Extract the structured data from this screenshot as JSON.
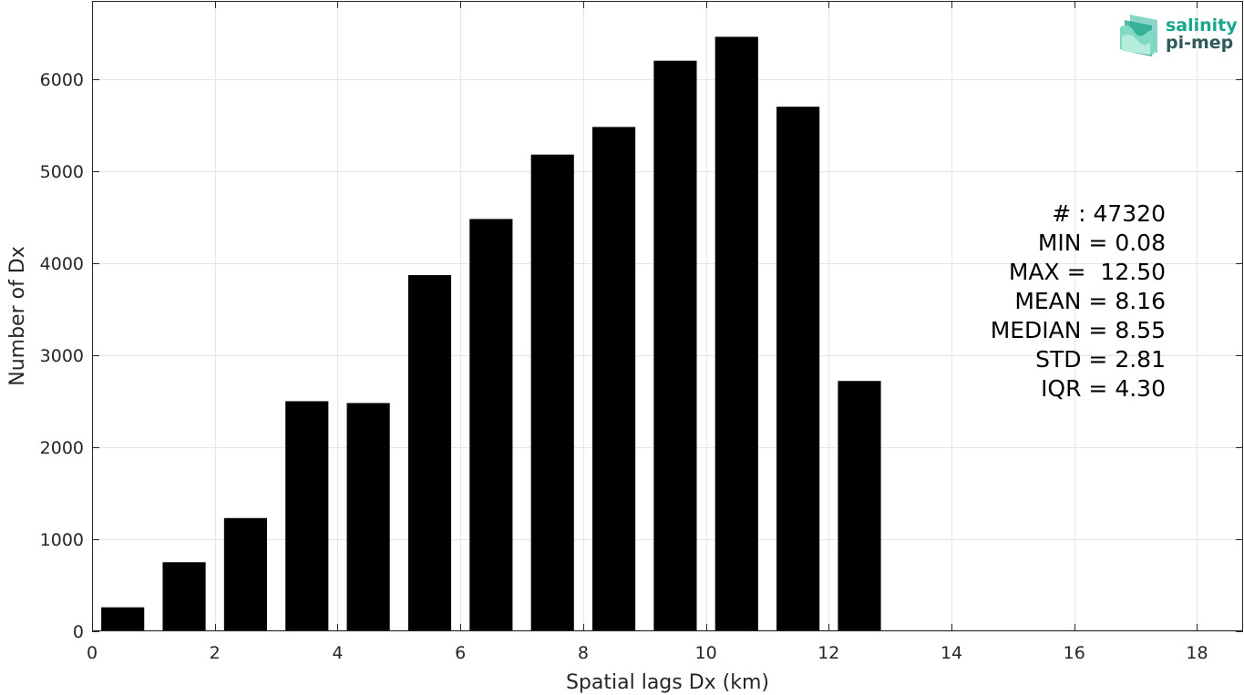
{
  "chart_data": {
    "type": "bar",
    "x": [
      0.5,
      1.5,
      2.5,
      3.5,
      4.5,
      5.5,
      6.5,
      7.5,
      8.5,
      9.5,
      10.5,
      11.5,
      12.5
    ],
    "values": [
      260,
      750,
      1230,
      2500,
      2480,
      3870,
      4480,
      5180,
      5480,
      6200,
      6460,
      5700,
      2720
    ],
    "bar_width": 0.7,
    "bar_color": "#000000",
    "xlabel": "Spatial lags Dx (km)",
    "ylabel": "Number of Dx",
    "xlim": [
      0,
      18.75
    ],
    "ylim": [
      0,
      6850
    ],
    "xticks": [
      0,
      2,
      4,
      6,
      8,
      10,
      12,
      14,
      16,
      18
    ],
    "yticks": [
      0,
      1000,
      2000,
      3000,
      4000,
      5000,
      6000
    ],
    "grid": true,
    "annotations": [
      "# : 47320",
      "MIN = 0.08",
      "MAX =  12.50",
      "MEAN = 8.16",
      "MEDIAN = 8.55",
      "STD = 2.81",
      "IQR = 4.30"
    ]
  },
  "logo": {
    "line1": "salinity",
    "line2": "pi-mep",
    "color_line1": "#1aa58f",
    "color_line2": "#2f5a5a",
    "mark_color": "#2bb39a"
  }
}
